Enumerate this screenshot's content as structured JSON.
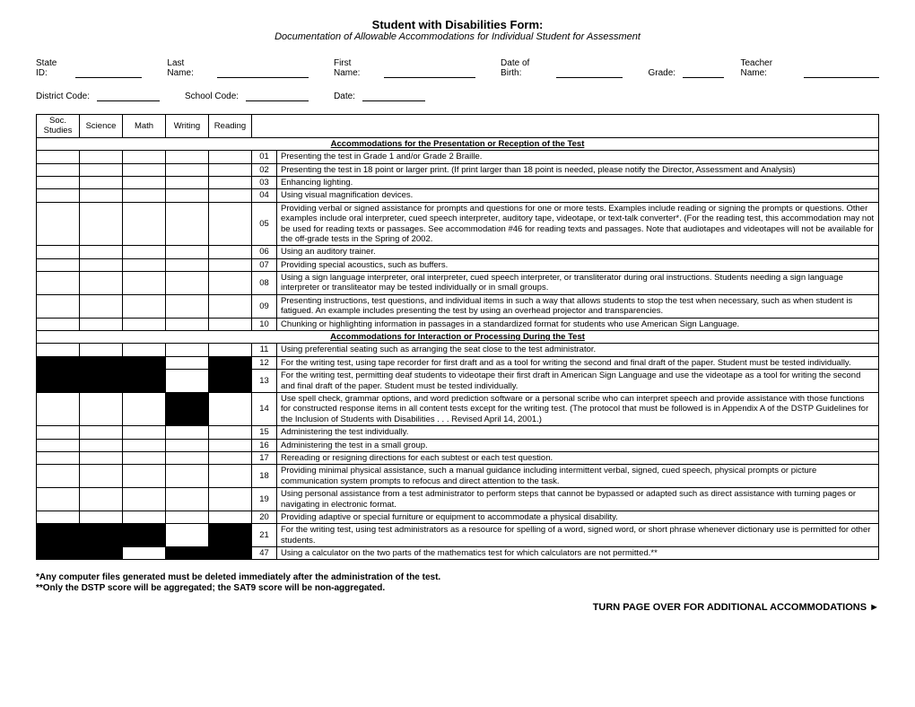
{
  "title": "Student with Disabilities Form:",
  "subtitle": "Documentation of Allowable Accommodations for Individual Student for Assessment",
  "fields1": {
    "stateId": "State ID:",
    "lastName": "Last Name:",
    "firstName": "First Name:",
    "dob": "Date of Birth:",
    "grade": "Grade:",
    "teacher": "Teacher Name:"
  },
  "fields2": {
    "district": "District Code:",
    "school": "School Code:",
    "date": "Date:"
  },
  "subjects": [
    "Soc. Studies",
    "Science",
    "Math",
    "Writing",
    "Reading"
  ],
  "section1": "Accommodations for the Presentation or Reception of the Test",
  "section2": "Accommodations for Interaction or Processing During the Test",
  "rows1": [
    {
      "black": [
        0,
        0,
        0,
        0,
        0
      ],
      "code": "01",
      "desc": "Presenting the test in Grade 1 and/or Grade 2 Braille."
    },
    {
      "black": [
        0,
        0,
        0,
        0,
        0
      ],
      "code": "02",
      "desc": "Presenting the test in 18 point or larger print. (If print larger than 18 point is needed, please notify the Director,  Assessment and Analysis)"
    },
    {
      "black": [
        0,
        0,
        0,
        0,
        0
      ],
      "code": "03",
      "desc": "Enhancing lighting."
    },
    {
      "black": [
        0,
        0,
        0,
        0,
        0
      ],
      "code": "04",
      "desc": "Using visual magnification devices."
    },
    {
      "black": [
        0,
        0,
        0,
        0,
        0
      ],
      "code": "05",
      "desc": "Providing verbal or signed assistance for prompts and questions for one or more tests.  Examples include reading or signing the prompts or questions.  Other examples include oral interpreter, cued speech interpreter, auditory tape, videotape, or text-talk converter*.  (For the reading test, this accommodation may not be used for reading texts or passages.  See accommodation #46 for reading texts and passages.  Note that audiotapes and videotapes will not be available for the off-grade tests in the Spring of 2002."
    },
    {
      "black": [
        0,
        0,
        0,
        0,
        0
      ],
      "code": "06",
      "desc": "Using an auditory trainer."
    },
    {
      "black": [
        0,
        0,
        0,
        0,
        0
      ],
      "code": "07",
      "desc": "Providing special acoustics, such as buffers."
    },
    {
      "black": [
        0,
        0,
        0,
        0,
        0
      ],
      "code": "08",
      "desc": "Using a sign language interpreter, oral interpreter, cued speech interpreter, or transliterator during oral instructions.  Students needing a sign language interpreter or transliteator may be tested individually or in small groups."
    },
    {
      "black": [
        0,
        0,
        0,
        0,
        0
      ],
      "code": "09",
      "desc": "Presenting instructions, test questions, and individual items in such a way that allows students to stop the test when necessary, such as when student is fatigued.  An example includes presenting the test by using an overhead projector and transparencies."
    },
    {
      "black": [
        0,
        0,
        0,
        0,
        0
      ],
      "code": "10",
      "desc": "Chunking or highlighting information in passages in a standardized format for students who use American Sign Language."
    }
  ],
  "rows2": [
    {
      "black": [
        0,
        0,
        0,
        0,
        0
      ],
      "code": "11",
      "desc": "Using preferential seating such as arranging the seat close to the test administrator."
    },
    {
      "black": [
        1,
        1,
        1,
        0,
        1
      ],
      "code": "12",
      "desc": "For the writing test, using tape recorder for first draft and as a tool for writing the second and final draft of the paper.  Student must be tested individually."
    },
    {
      "black": [
        1,
        1,
        1,
        0,
        1
      ],
      "code": "13",
      "desc": "For the writing test, permitting deaf students to videotape their first draft in American Sign Language and use the videotape as a tool for writing the second and final draft of the paper.  Student must be tested individually."
    },
    {
      "black": [
        0,
        0,
        0,
        1,
        0
      ],
      "code": "14",
      "desc": "Use spell check, grammar options, and word prediction software or a personal scribe who can interpret speech and provide assistance with those functions for constructed response items in all content tests except for the writing test.  (The protocol that must be followed is in Appendix A of the DSTP Guidelines for the Inclusion of Students with Disabilities . . . Revised April 14, 2001.)"
    },
    {
      "black": [
        0,
        0,
        0,
        0,
        0
      ],
      "code": "15",
      "desc": "Administering the test individually."
    },
    {
      "black": [
        0,
        0,
        0,
        0,
        0
      ],
      "code": "16",
      "desc": "Administering the test in a small group."
    },
    {
      "black": [
        0,
        0,
        0,
        0,
        0
      ],
      "code": "17",
      "desc": "Rereading or resigning directions for each subtest or each test question."
    },
    {
      "black": [
        0,
        0,
        0,
        0,
        0
      ],
      "code": "18",
      "desc": "Providing minimal physical assistance, such a manual guidance including intermittent verbal, signed, cued speech, physical prompts or picture communication system prompts to refocus and direct attention to the task."
    },
    {
      "black": [
        0,
        0,
        0,
        0,
        0
      ],
      "code": "19",
      "desc": "Using personal assistance from a test administrator to perform steps that cannot be bypassed or adapted such as direct assistance with turning pages or navigating in electronic format."
    },
    {
      "black": [
        0,
        0,
        0,
        0,
        0
      ],
      "code": "20",
      "desc": "Providing adaptive or special furniture or equipment to accommodate a physical disability."
    },
    {
      "black": [
        1,
        1,
        1,
        0,
        1
      ],
      "code": "21",
      "desc": "For the writing test, using test administrators as a resource for spelling of a word, signed word, or short phrase whenever dictionary use is permitted for other students."
    },
    {
      "black": [
        1,
        1,
        0,
        1,
        1
      ],
      "code": "47",
      "desc": "Using a calculator on the two parts of the mathematics test for which calculators are not permitted.**"
    }
  ],
  "footnote1": "*Any computer files generated must be deleted immediately after the administration of the test.",
  "footnote2": "**Only the DSTP score will be aggregated; the SAT9 score will be non-aggregated.",
  "turnOver": "TURN PAGE OVER FOR ADDITIONAL ACCOMMODATIONS ►"
}
